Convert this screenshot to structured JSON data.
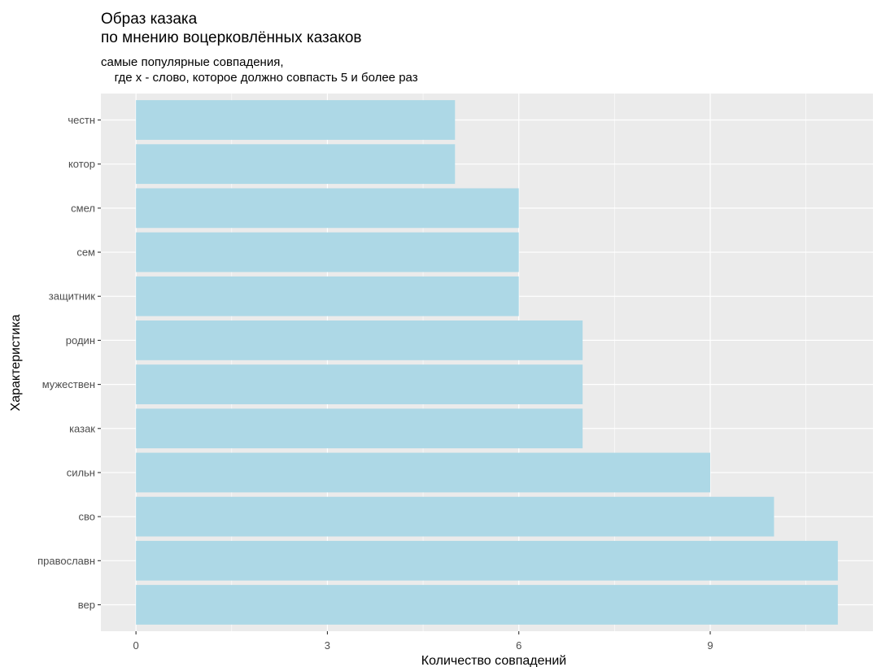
{
  "chart_data": {
    "type": "bar",
    "orientation": "horizontal",
    "title": "Образ казака\nпо мнению воцерковлённых казаков",
    "subtitle": "самые популярные совпадения,\n    где x - слово, которое должно совпасть 5 и более раз",
    "xlabel": "Количество совпадений",
    "ylabel": "Характеристика",
    "categories": [
      "честн",
      "котор",
      "смел",
      "сем",
      "защитник",
      "родин",
      "мужествен",
      "казак",
      "сильн",
      "сво",
      "православн",
      "вер"
    ],
    "values": [
      5,
      5,
      6,
      6,
      6,
      7,
      7,
      7,
      9,
      10,
      11,
      11
    ],
    "xlim": [
      -0.55,
      11.55
    ],
    "xticks": [
      0,
      3,
      6,
      9
    ],
    "bar_color": "#ADD8E6",
    "panel_color": "#EBEBEB",
    "grid": true
  }
}
